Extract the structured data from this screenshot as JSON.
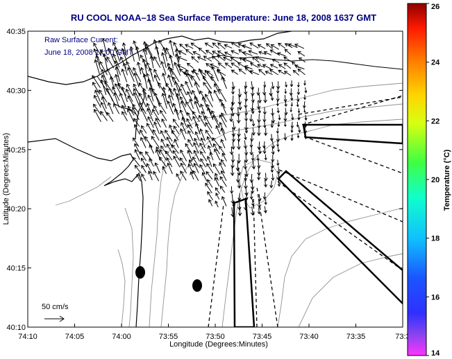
{
  "chart_data": {
    "type": "map",
    "title": "RU COOL  NOAA–18  Sea Surface Temperature:  June 18, 2008 1637 GMT",
    "annotation_lines": [
      "Raw Surface Current:",
      "June 18, 2008 17:00 GMT"
    ],
    "xlabel": "Longitude (Degrees:Minutes)",
    "ylabel": "Latitude (Degrees:Minutes)",
    "x_ticks": [
      "74:10",
      "74:05",
      "74:00",
      "73:55",
      "73:50",
      "73:45",
      "73:40",
      "73:35",
      "73:3"
    ],
    "y_ticks": [
      "40:35",
      "40:30",
      "40:25",
      "40:20",
      "40:15",
      "40:10"
    ],
    "xlim_minutes_west": [
      4450,
      4410
    ],
    "ylim_minutes_north": [
      2410,
      2435
    ],
    "colorbar": {
      "label": "Temperature (°C)",
      "ticks": [
        "26",
        "24",
        "22",
        "20",
        "18",
        "16",
        "14"
      ],
      "range": [
        14,
        26
      ]
    },
    "scale_label": "50 cm/s",
    "scale_speed_cms": 50,
    "current_field": {
      "description": "Surface current vectors over the NY Bight apex",
      "count_estimate": 420
    }
  }
}
